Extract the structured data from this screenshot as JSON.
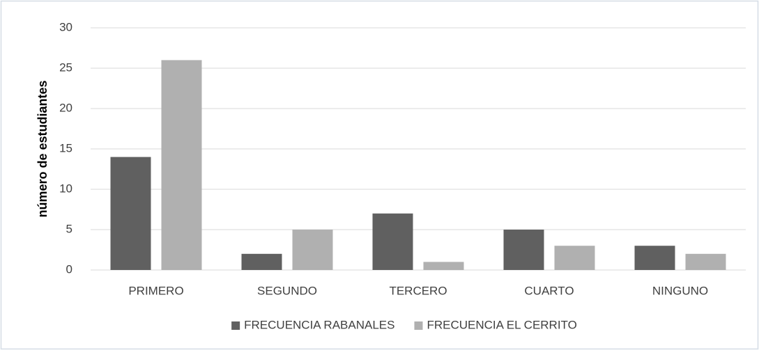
{
  "chart_data": {
    "type": "bar",
    "y_label": "número de estudiantes",
    "categories": [
      "PRIMERO",
      "SEGUNDO",
      "TERCERO",
      "CUARTO",
      "NINGUNO"
    ],
    "series": [
      {
        "name": "FRECUENCIA RABANALES",
        "color": "#606060",
        "values": [
          14,
          2,
          7,
          5,
          3
        ]
      },
      {
        "name": "FRECUENCIA EL CERRITO",
        "color": "#b0b0b0",
        "values": [
          26,
          5,
          1,
          3,
          2
        ]
      }
    ],
    "ylim": [
      0,
      30
    ],
    "yticks": [
      0,
      5,
      10,
      15,
      20,
      25,
      30
    ],
    "grid": true,
    "legend": "bottom"
  }
}
